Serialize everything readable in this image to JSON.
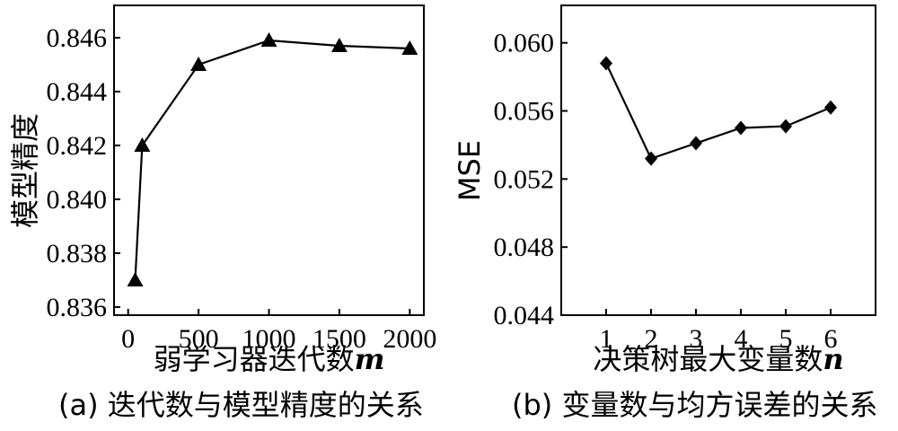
{
  "chart_data": [
    {
      "type": "line",
      "marker": "triangle",
      "caption": "(a) 迭代数与模型精度的关系",
      "xlabel_text": "弱学习器迭代数",
      "xlabel_var": "m",
      "ylabel": "模型精度",
      "x": [
        50,
        100,
        500,
        1000,
        1500,
        2000
      ],
      "y": [
        0.837,
        0.842,
        0.845,
        0.8459,
        0.8457,
        0.8456
      ],
      "xlim": [
        -100,
        2100
      ],
      "ylim": [
        0.8357,
        0.8472
      ],
      "xticks": [
        0,
        500,
        1000,
        1500,
        2000
      ],
      "xtick_labels": [
        "0",
        "500",
        "1000",
        "1500",
        "2000"
      ],
      "yticks": [
        0.836,
        0.838,
        0.84,
        0.842,
        0.844,
        0.846
      ],
      "ytick_labels": [
        "0.836",
        "0.838",
        "0.840",
        "0.842",
        "0.844",
        "0.846"
      ],
      "grid": false,
      "line_color": "#000000"
    },
    {
      "type": "line",
      "marker": "diamond",
      "caption": "(b) 变量数与均方误差的关系",
      "xlabel_text": "决策树最大变量数",
      "xlabel_var": "n",
      "ylabel": "MSE",
      "x": [
        1,
        2,
        3,
        4,
        5,
        6
      ],
      "y": [
        0.0588,
        0.0532,
        0.0541,
        0.055,
        0.0551,
        0.0562
      ],
      "xlim": [
        0,
        7
      ],
      "ylim": [
        0.044,
        0.0622
      ],
      "xticks": [
        1,
        2,
        3,
        4,
        5,
        6
      ],
      "xtick_labels": [
        "1",
        "2",
        "3",
        "4",
        "5",
        "6"
      ],
      "yticks": [
        0.044,
        0.048,
        0.052,
        0.056,
        0.06
      ],
      "ytick_labels": [
        "0.044",
        "0.048",
        "0.052",
        "0.056",
        "0.060"
      ],
      "grid": false,
      "line_color": "#000000"
    }
  ]
}
